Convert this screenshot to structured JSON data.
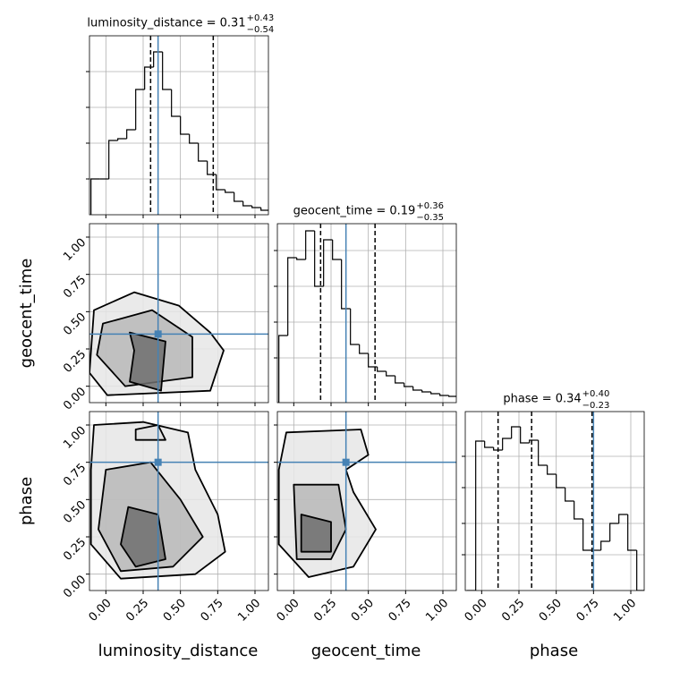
{
  "chart_data": {
    "type": "corner",
    "xlim": [
      -0.11,
      1.09
    ],
    "ylim": [
      -0.11,
      1.09
    ],
    "ticks": [
      {
        "value": 0,
        "label": "0.00"
      },
      {
        "value": 0.25,
        "label": "0.25"
      },
      {
        "value": 0.5,
        "label": "0.50"
      },
      {
        "value": 0.75,
        "label": "0.75"
      },
      {
        "value": 1,
        "label": "1.00"
      }
    ],
    "truth_color": "#4682b4",
    "grid": true,
    "parameters": [
      {
        "name": "luminosity_distance",
        "title": "luminosity_distance = 0.31",
        "title_plus": "+0.43",
        "title_minus": "−0.54",
        "truth": 0.35,
        "quantiles": [
          0.3,
          0.72
        ],
        "bins": [
          -0.1,
          -0.04,
          0.02,
          0.08,
          0.14,
          0.2,
          0.26,
          0.32,
          0.38,
          0.44,
          0.5,
          0.56,
          0.62,
          0.68,
          0.74,
          0.8,
          0.86,
          0.92,
          0.98,
          1.04,
          1.1
        ],
        "counts": [
          40,
          40,
          83,
          85,
          95,
          140,
          165,
          182,
          140,
          110,
          90,
          80,
          60,
          45,
          28,
          25,
          15,
          10,
          8,
          5
        ],
        "ylim": [
          0,
          200
        ],
        "yticks": [
          40,
          80,
          120,
          160
        ]
      },
      {
        "name": "geocent_time",
        "title": "geocent_time = 0.19",
        "title_plus": "+0.36",
        "title_minus": "−0.35",
        "truth": 0.35,
        "quantiles": [
          0.18,
          0.545
        ],
        "bins": [
          -0.1,
          -0.04,
          0.02,
          0.08,
          0.14,
          0.2,
          0.26,
          0.32,
          0.38,
          0.44,
          0.5,
          0.56,
          0.62,
          0.68,
          0.74,
          0.8,
          0.86,
          0.92,
          0.98,
          1.04,
          1.1
        ],
        "counts": [
          75,
          162,
          160,
          192,
          130,
          182,
          160,
          105,
          65,
          55,
          40,
          35,
          30,
          22,
          18,
          14,
          12,
          10,
          8,
          7
        ],
        "ylim": [
          0,
          200
        ],
        "yticks": [
          50,
          90,
          130,
          170
        ]
      },
      {
        "name": "phase",
        "title": "phase = 0.34",
        "title_plus": "+0.40",
        "title_minus": "−0.23",
        "truth": 0.75,
        "quantiles": [
          0.11,
          0.335,
          0.74
        ],
        "bins": [
          -0.1,
          -0.04,
          0.02,
          0.08,
          0.14,
          0.2,
          0.26,
          0.32,
          0.38,
          0.44,
          0.5,
          0.56,
          0.62,
          0.68,
          0.74,
          0.8,
          0.86,
          0.92,
          0.98,
          1.04,
          1.1
        ],
        "counts": [
          0,
          167,
          160,
          157,
          170,
          183,
          165,
          168,
          140,
          130,
          115,
          100,
          80,
          45,
          45,
          55,
          75,
          85,
          45,
          0
        ],
        "ylim": [
          0,
          200
        ],
        "yticks": [
          40,
          75,
          115,
          150
        ]
      }
    ],
    "pairs": [
      {
        "contours": [
          {
            "x": [
              -0.08,
              0.19,
              0.49,
              0.7,
              0.79,
              0.7,
              0.01,
              -0.11
            ],
            "y": [
              0.51,
              0.63,
              0.54,
              0.36,
              0.24,
              -0.03,
              -0.06,
              0.09
            ]
          },
          {
            "x": [
              -0.02,
              0.31,
              0.58,
              0.58,
              0.13,
              -0.06
            ],
            "y": [
              0.42,
              0.51,
              0.33,
              0.06,
              0.0,
              0.21
            ]
          },
          {
            "x": [
              0.16,
              0.4,
              0.37,
              0.16,
              0.19
            ],
            "y": [
              0.36,
              0.3,
              -0.03,
              0.03,
              0.24
            ]
          }
        ]
      },
      {
        "contours": [
          {
            "x": [
              -0.08,
              0.25,
              0.55,
              0.6,
              0.75,
              0.8,
              0.6,
              0.1,
              -0.1,
              -0.1
            ],
            "y": [
              1.0,
              1.02,
              0.95,
              0.7,
              0.4,
              0.15,
              0.0,
              -0.03,
              0.2,
              0.7
            ]
          },
          {
            "x": [
              0.0,
              0.3,
              0.5,
              0.65,
              0.45,
              0.1,
              -0.05
            ],
            "y": [
              0.7,
              0.75,
              0.5,
              0.25,
              0.05,
              0.02,
              0.3
            ]
          },
          {
            "x": [
              0.15,
              0.35,
              0.4,
              0.2,
              0.1
            ],
            "y": [
              0.45,
              0.4,
              0.1,
              0.05,
              0.2
            ]
          },
          {
            "x": [
              0.2,
              0.35,
              0.4,
              0.2
            ],
            "y": [
              0.97,
              1.0,
              0.9,
              0.9
            ]
          }
        ]
      },
      {
        "contours": [
          {
            "x": [
              -0.05,
              0.45,
              0.5,
              0.35,
              0.4,
              0.55,
              0.4,
              0.1,
              -0.1,
              -0.1
            ],
            "y": [
              0.95,
              0.97,
              0.8,
              0.7,
              0.55,
              0.3,
              0.05,
              -0.02,
              0.2,
              0.7
            ]
          },
          {
            "x": [
              0.0,
              0.3,
              0.35,
              0.25,
              0.02
            ],
            "y": [
              0.6,
              0.6,
              0.3,
              0.1,
              0.1
            ]
          },
          {
            "x": [
              0.05,
              0.25,
              0.25,
              0.05
            ],
            "y": [
              0.4,
              0.35,
              0.15,
              0.15
            ]
          }
        ]
      }
    ]
  }
}
